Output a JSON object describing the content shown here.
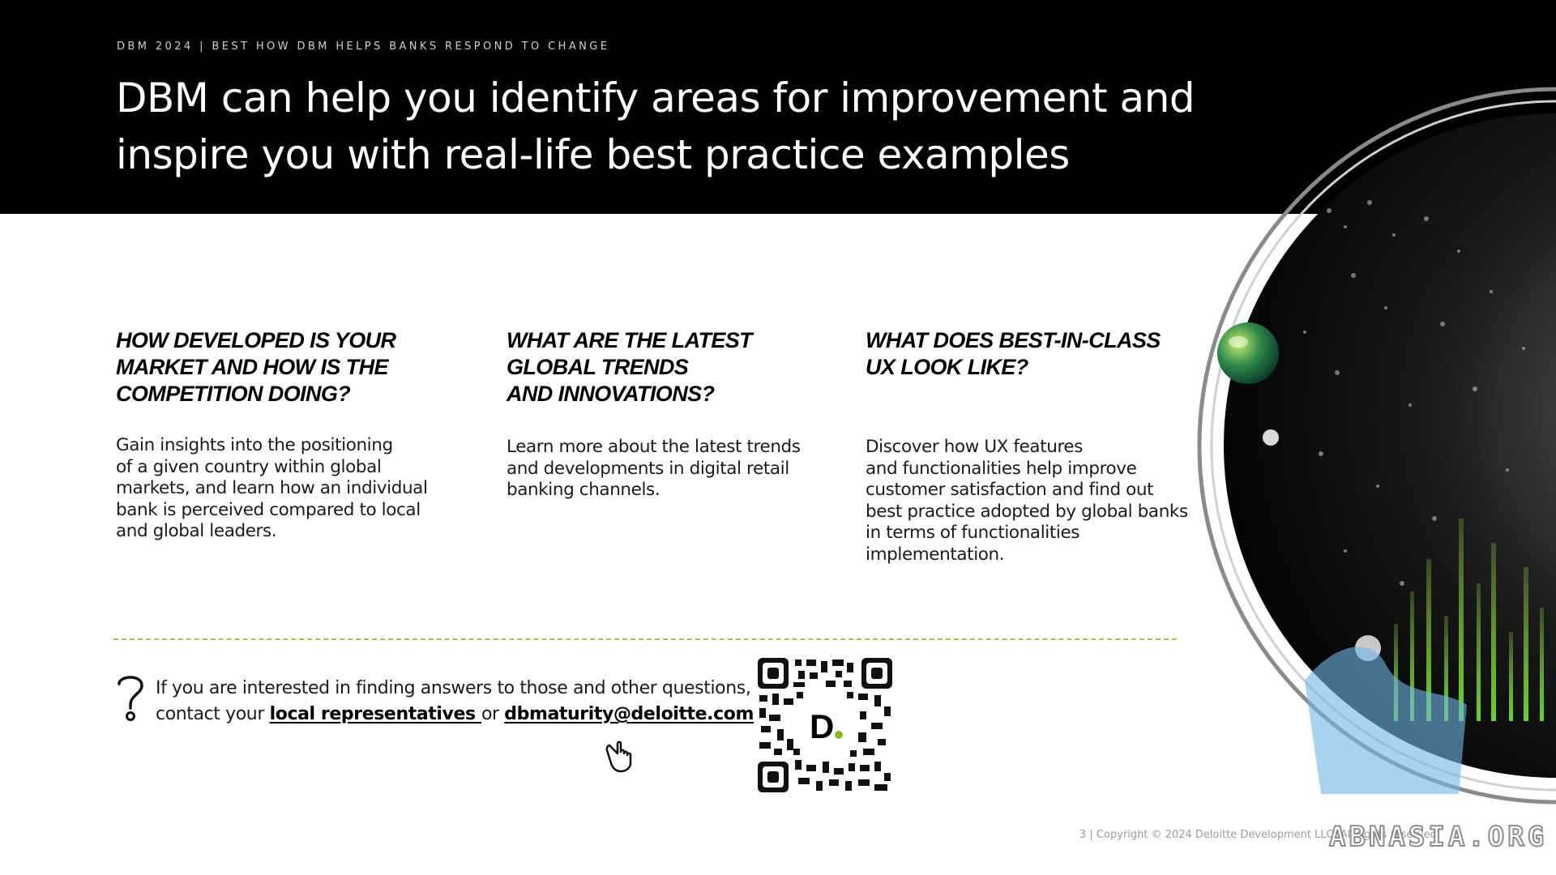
{
  "header": {
    "eyebrow": "DBM 2024 | BEST HOW DBM HELPS BANKS RESPOND TO CHANGE",
    "title": "DBM can help you identify areas for improvement and inspire you with real-life best practice examples"
  },
  "columns": [
    {
      "heading": "HOW DEVELOPED IS YOUR\nMARKET AND HOW IS THE\nCOMPETITION DOING?",
      "body": "Gain insights into the positioning\nof a given country within global\nmarkets, and learn how an individual\nbank is perceived compared to local\nand global leaders."
    },
    {
      "heading": "WHAT ARE THE LATEST\nGLOBAL TRENDS\nAND INNOVATIONS?",
      "body": "Learn more about the latest trends\nand developments in digital retail\nbanking channels."
    },
    {
      "heading": "WHAT DOES BEST-IN-CLASS\nUX LOOK LIKE?",
      "body": "Discover how UX features\nand functionalities help improve\ncustomer satisfaction and find out\nbest practice adopted by global banks\nin terms of functionalities\nimplementation."
    }
  ],
  "contact": {
    "line1": "If you are interested in finding answers to those and other questions,",
    "line2_prefix": "contact your ",
    "link_representatives": "local representatives ",
    "connector": " or ",
    "link_email": "dbmaturity@deloitte.com"
  },
  "qr": {
    "logo_letter": "D"
  },
  "footer": {
    "text": "3 | Copyright © 2024 Deloitte Development LLC. All rights reserved."
  },
  "watermark": {
    "text": "ABNASIA.ORG"
  },
  "colors": {
    "header_bg": "#000000",
    "accent_green": "#86bc25",
    "divider": "#a9bd5e"
  },
  "icons": [
    "question-mark-icon",
    "pointing-hand-icon",
    "qr-code",
    "globe-graphic"
  ]
}
